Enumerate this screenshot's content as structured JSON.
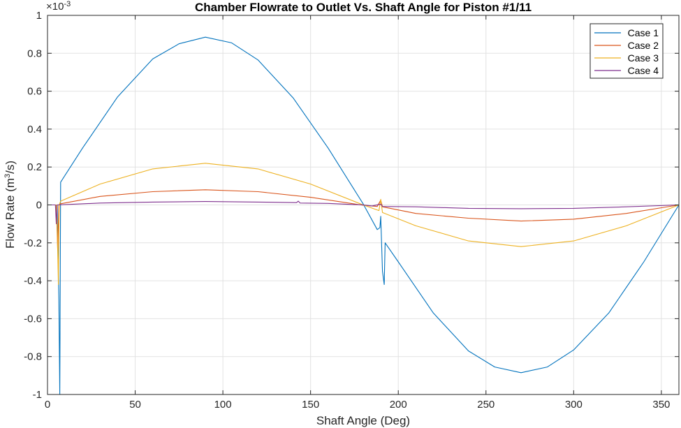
{
  "chart_data": {
    "type": "line",
    "title": "Chamber Flowrate to Outlet Vs. Shaft Angle for Piston #1/11",
    "xlabel": "Shaft Angle (Deg)",
    "ylabel_main": "Flow  Rate  (m",
    "ylabel_sup": "3",
    "ylabel_end": "/s)",
    "exponent_base": "×10",
    "exponent_power": "-3",
    "xlim": [
      0,
      360
    ],
    "ylim": [
      -1,
      1
    ],
    "xticks": [
      0,
      50,
      100,
      150,
      200,
      250,
      300,
      350
    ],
    "xtick_labels": [
      "0",
      "50",
      "100",
      "150",
      "200",
      "250",
      "300",
      "350"
    ],
    "yticks": [
      -1,
      -0.8,
      -0.6,
      -0.4,
      -0.2,
      0,
      0.2,
      0.4,
      0.6,
      0.8,
      1
    ],
    "ytick_labels": [
      "-1",
      "-0.8",
      "-0.6",
      "-0.4",
      "-0.2",
      "0",
      "0.2",
      "0.4",
      "0.6",
      "0.8",
      "1"
    ],
    "grid": true,
    "legend_position": "top-right",
    "series": [
      {
        "name": "Case 1",
        "color": "#0072BD",
        "points": [
          [
            0,
            0
          ],
          [
            5.5,
            0
          ],
          [
            6.5,
            -0.5
          ],
          [
            7,
            -1
          ],
          [
            7.5,
            0.12
          ],
          [
            20,
            0.3
          ],
          [
            40,
            0.57
          ],
          [
            60,
            0.77
          ],
          [
            75,
            0.85
          ],
          [
            90,
            0.885
          ],
          [
            105,
            0.855
          ],
          [
            120,
            0.765
          ],
          [
            140,
            0.565
          ],
          [
            160,
            0.3
          ],
          [
            180,
            0.005
          ],
          [
            188,
            -0.13
          ],
          [
            189.5,
            -0.12
          ],
          [
            190,
            -0.06
          ],
          [
            191,
            -0.35
          ],
          [
            192,
            -0.42
          ],
          [
            192.5,
            -0.2
          ],
          [
            200,
            -0.3
          ],
          [
            220,
            -0.57
          ],
          [
            240,
            -0.77
          ],
          [
            255,
            -0.855
          ],
          [
            270,
            -0.885
          ],
          [
            285,
            -0.855
          ],
          [
            300,
            -0.765
          ],
          [
            320,
            -0.57
          ],
          [
            340,
            -0.3
          ],
          [
            360,
            0
          ]
        ]
      },
      {
        "name": "Case 2",
        "color": "#D95319",
        "points": [
          [
            0,
            0
          ],
          [
            5,
            0
          ],
          [
            5.8,
            -0.24
          ],
          [
            6.5,
            0
          ],
          [
            7,
            0.005
          ],
          [
            30,
            0.045
          ],
          [
            60,
            0.07
          ],
          [
            90,
            0.08
          ],
          [
            120,
            0.07
          ],
          [
            150,
            0.04
          ],
          [
            180,
            -0.002
          ],
          [
            188,
            -0.008
          ],
          [
            190,
            0.025
          ],
          [
            191,
            -0.01
          ],
          [
            210,
            -0.045
          ],
          [
            240,
            -0.07
          ],
          [
            270,
            -0.085
          ],
          [
            300,
            -0.075
          ],
          [
            330,
            -0.045
          ],
          [
            360,
            0
          ]
        ]
      },
      {
        "name": "Case 3",
        "color": "#EDB120",
        "points": [
          [
            0,
            0
          ],
          [
            5,
            0
          ],
          [
            5.5,
            -0.1
          ],
          [
            6.2,
            -0.42
          ],
          [
            6.7,
            0
          ],
          [
            7.5,
            0.02
          ],
          [
            30,
            0.11
          ],
          [
            60,
            0.19
          ],
          [
            90,
            0.22
          ],
          [
            120,
            0.19
          ],
          [
            150,
            0.11
          ],
          [
            180,
            0
          ],
          [
            189,
            -0.03
          ],
          [
            190,
            0.03
          ],
          [
            191,
            -0.04
          ],
          [
            210,
            -0.11
          ],
          [
            240,
            -0.19
          ],
          [
            270,
            -0.22
          ],
          [
            300,
            -0.19
          ],
          [
            330,
            -0.11
          ],
          [
            360,
            0
          ]
        ]
      },
      {
        "name": "Case 4",
        "color": "#7E2F8E",
        "points": [
          [
            0,
            0
          ],
          [
            4.5,
            0
          ],
          [
            5,
            -0.1
          ],
          [
            5.5,
            0
          ],
          [
            30,
            0.01
          ],
          [
            60,
            0.015
          ],
          [
            90,
            0.018
          ],
          [
            120,
            0.015
          ],
          [
            142,
            0.012
          ],
          [
            143,
            0.02
          ],
          [
            144,
            0.01
          ],
          [
            160,
            0.008
          ],
          [
            180,
            0
          ],
          [
            185,
            -0.005
          ],
          [
            190,
            0.004
          ],
          [
            191,
            -0.008
          ],
          [
            210,
            -0.01
          ],
          [
            240,
            -0.018
          ],
          [
            270,
            -0.02
          ],
          [
            300,
            -0.018
          ],
          [
            330,
            -0.01
          ],
          [
            360,
            0
          ]
        ]
      }
    ]
  }
}
